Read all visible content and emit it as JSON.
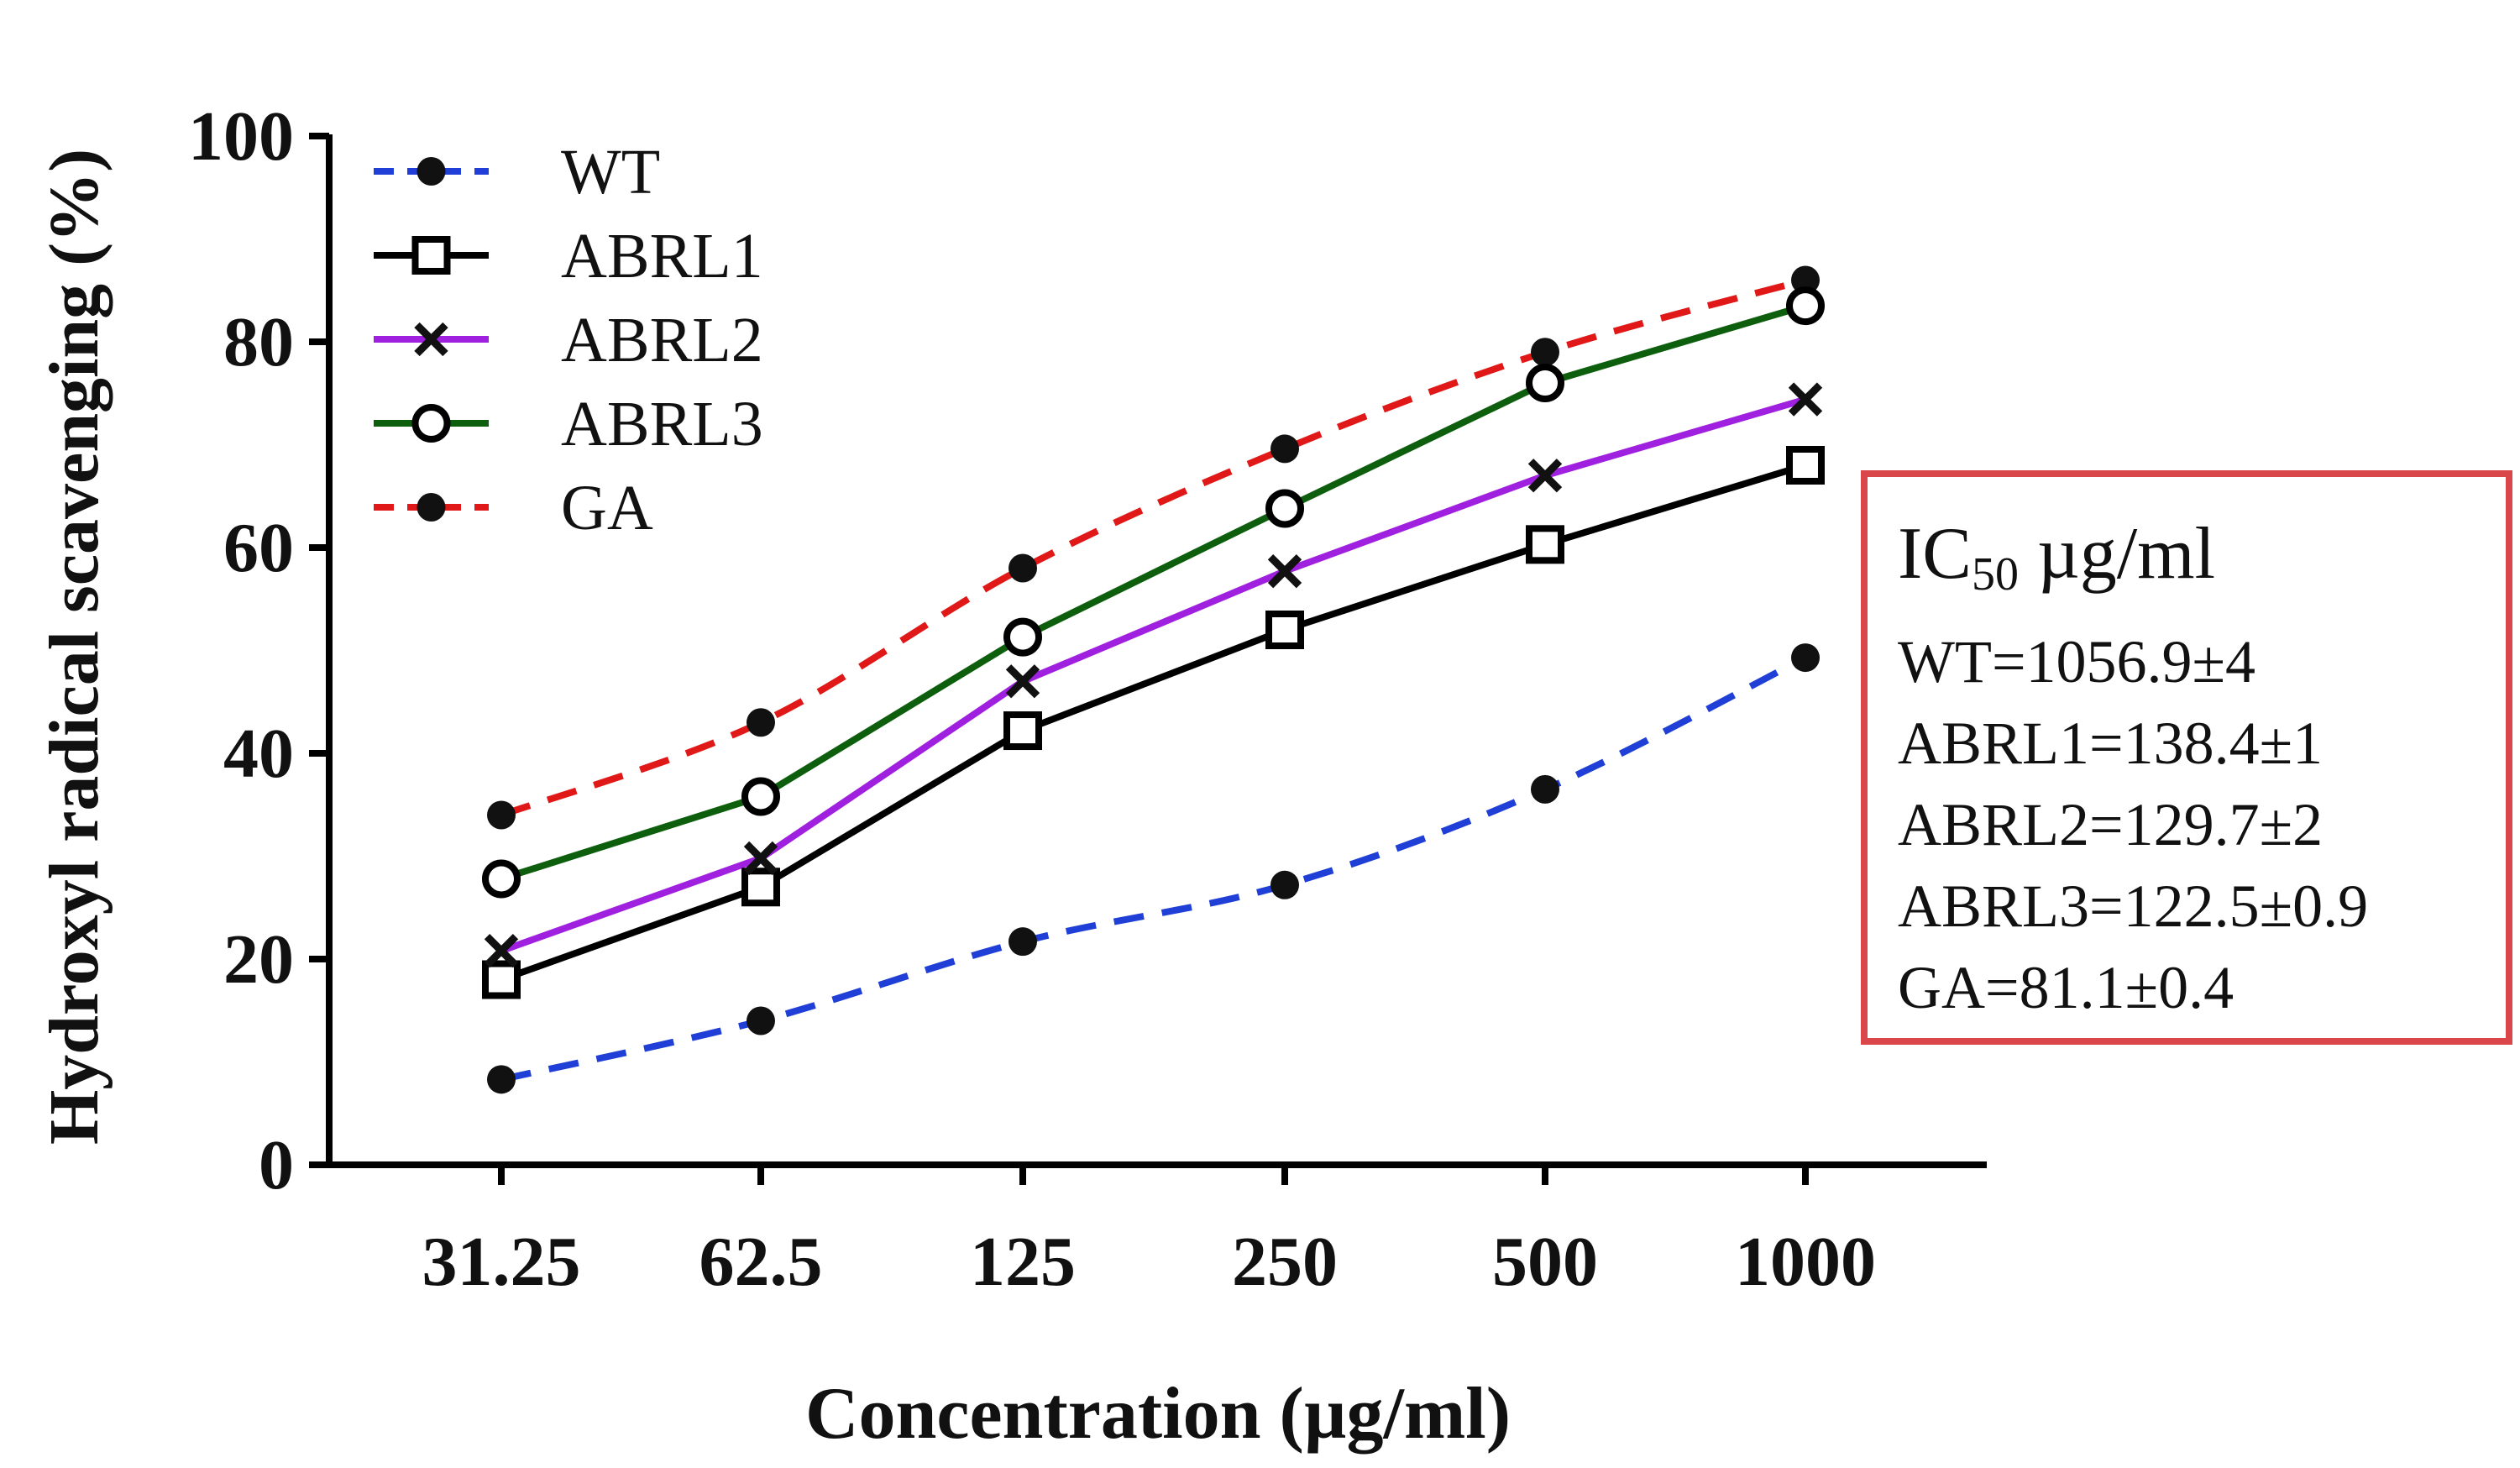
{
  "chart_data": {
    "type": "line",
    "title": "",
    "xlabel": "Concentration (µg/ml)",
    "ylabel": "Hydroxyl radical scavenging (%)",
    "categories": [
      "31.25",
      "62.5",
      "125",
      "250",
      "500",
      "1000"
    ],
    "ylim": [
      0,
      100
    ],
    "yticks": [
      "0",
      "20",
      "40",
      "60",
      "80",
      "100"
    ],
    "grid": false,
    "legend_position": "top-left",
    "series": [
      {
        "name": "WT",
        "values": [
          8.3,
          14.0,
          21.7,
          27.2,
          36.5,
          49.3
        ],
        "color": "#1f3fd6",
        "dash": "dashed",
        "marker": "filled-circle"
      },
      {
        "name": "ABRL1",
        "values": [
          18.0,
          27.0,
          42.2,
          52.0,
          60.3,
          68.0
        ],
        "color": "#000000",
        "dash": "solid",
        "marker": "open-square"
      },
      {
        "name": "ABRL2",
        "values": [
          20.8,
          29.8,
          47.0,
          57.7,
          67.0,
          74.4
        ],
        "color": "#a020e0",
        "dash": "solid",
        "marker": "x-cross"
      },
      {
        "name": "ABRL3",
        "values": [
          27.8,
          35.8,
          51.3,
          63.8,
          76.0,
          83.5
        ],
        "color": "#0d5e0d",
        "dash": "solid",
        "marker": "open-circle"
      },
      {
        "name": "GA",
        "values": [
          34.0,
          43.0,
          58.0,
          69.6,
          79.0,
          86.0
        ],
        "color": "#e01818",
        "dash": "dashed",
        "marker": "filled-circle"
      }
    ],
    "annotation": {
      "title_main": "IC",
      "title_sub": "50",
      "title_unit": " µg/ml",
      "items": [
        "WT=1056.9±4",
        "ABRL1=138.4±1",
        "ABRL2=129.7±2",
        "ABRL3=122.5±0.9",
        "GA=81.1±0.4"
      ],
      "border_color": "#d9474a"
    }
  }
}
